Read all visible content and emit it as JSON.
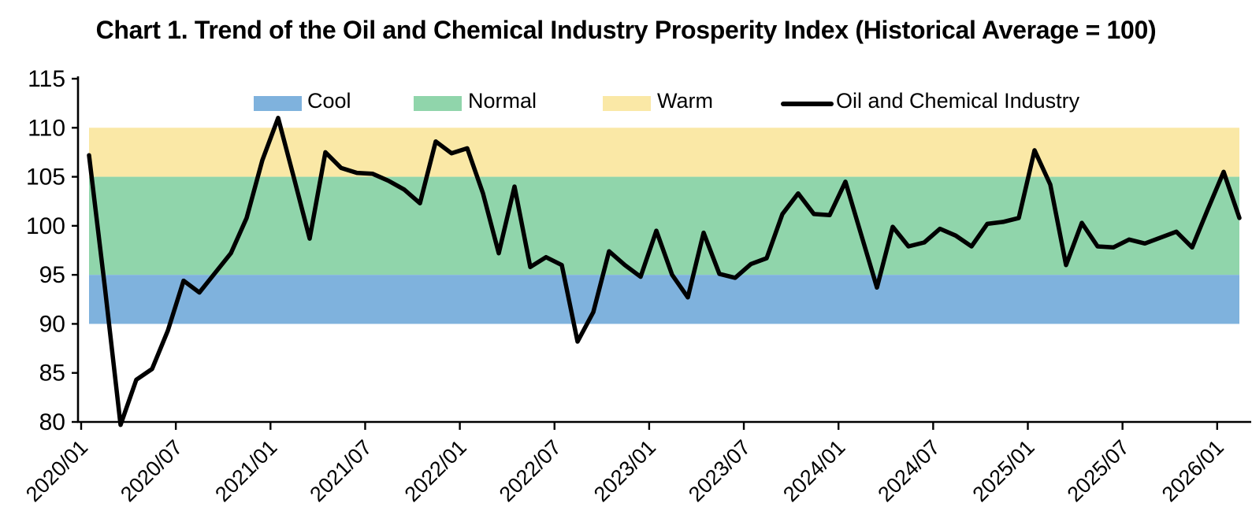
{
  "chart_data": {
    "type": "line",
    "title": "Chart 1. Trend of the Oil and Chemical Industry Prosperity Index (Historical Average = 100)",
    "xlabel": "",
    "ylabel": "",
    "ylim": [
      80,
      115
    ],
    "y_ticks": [
      115,
      110,
      105,
      100,
      95,
      90,
      85,
      80
    ],
    "x_tick_labels": [
      "2020/01",
      "2020/07",
      "2021/01",
      "2021/07",
      "2022/01",
      "2022/07",
      "2023/01",
      "2023/07",
      "2024/01",
      "2024/07",
      "2025/01",
      "2025/07",
      "2026/01"
    ],
    "x_tick_interval_months": 6,
    "grid": false,
    "legend_position": "top",
    "bands": [
      {
        "name": "Warm",
        "range": [
          105,
          110
        ],
        "color": "#FAE8A6"
      },
      {
        "name": "Normal",
        "range": [
          95,
          105
        ],
        "color": "#90D5AB"
      },
      {
        "name": "Cool",
        "range": [
          90,
          95
        ],
        "color": "#7FB2DD"
      }
    ],
    "series": [
      {
        "name": "Oil and Chemical Industry",
        "color": "#000000",
        "start_month": "2020/01",
        "end_month": "2026/02",
        "values": [
          107.2,
          93.8,
          79.7,
          84.3,
          85.4,
          89.3,
          94.4,
          93.2,
          95.2,
          97.2,
          100.8,
          106.7,
          111.0,
          104.9,
          98.7,
          107.5,
          105.9,
          105.4,
          105.3,
          104.6,
          103.7,
          102.3,
          108.6,
          107.4,
          107.9,
          103.3,
          97.2,
          104.0,
          95.8,
          96.8,
          96.0,
          88.2,
          91.2,
          97.4,
          96.0,
          94.8,
          99.5,
          95.0,
          92.7,
          99.3,
          95.1,
          94.7,
          96.1,
          96.7,
          101.2,
          103.3,
          101.2,
          101.1,
          104.5,
          99.1,
          93.7,
          99.9,
          97.9,
          98.3,
          99.7,
          99.0,
          97.9,
          100.2,
          100.4,
          100.8,
          107.7,
          104.2,
          96.0,
          100.3,
          97.9,
          97.8,
          98.6,
          98.2,
          98.8,
          99.4,
          97.8,
          101.7,
          105.5,
          100.8
        ]
      }
    ]
  },
  "legend": {
    "items": [
      {
        "label": "Cool",
        "type": "swatch",
        "color": "#7FB2DD"
      },
      {
        "label": "Normal",
        "type": "swatch",
        "color": "#90D5AB"
      },
      {
        "label": "Warm",
        "type": "swatch",
        "color": "#FAE8A6"
      },
      {
        "label": "Oil and Chemical Industry",
        "type": "line",
        "color": "#000000"
      }
    ]
  }
}
